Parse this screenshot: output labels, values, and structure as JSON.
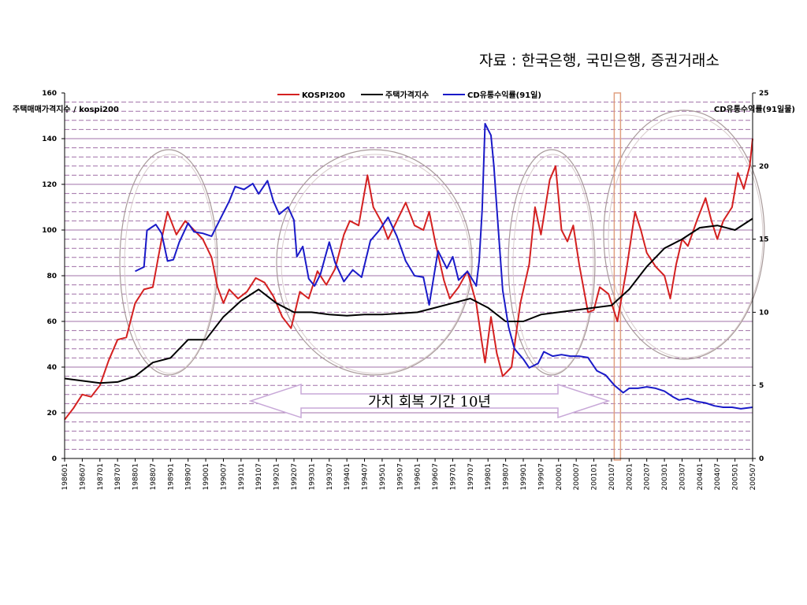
{
  "source_note": "자료 : 한국은행, 국민은행, 증권거래소",
  "chart_data": {
    "type": "line",
    "y_left_label": "주택매매가격지수 / kospi200",
    "y_right_label": "CD유통수익률(91일물)",
    "y_left_range": [
      0,
      160
    ],
    "y_left_ticks": [
      0,
      20,
      40,
      60,
      80,
      100,
      120,
      140,
      160
    ],
    "y_right_range": [
      0,
      25
    ],
    "y_right_ticks": [
      0,
      5,
      10,
      15,
      20,
      25
    ],
    "x_ticks": [
      "198601",
      "198607",
      "198701",
      "198707",
      "198801",
      "198807",
      "198901",
      "198907",
      "199001",
      "199007",
      "199101",
      "199107",
      "199201",
      "199207",
      "199301",
      "199307",
      "199401",
      "199407",
      "199501",
      "199507",
      "199601",
      "199607",
      "199701",
      "199707",
      "199801",
      "199807",
      "199901",
      "199907",
      "200001",
      "200007",
      "200101",
      "200107",
      "200201",
      "200207",
      "200301",
      "200307",
      "200401",
      "200407",
      "200501",
      "200507"
    ],
    "grid": "horizontal dashed",
    "legend_position": "top",
    "colors": {
      "kospi": "#d42020",
      "housing": "#000000",
      "cd": "#1a1ac8",
      "grid": "#a070a8",
      "ellipse": "#a89a9a",
      "arrow": "#c8a8d8",
      "highlight": "#e0a080"
    },
    "series": [
      {
        "name": "KOSPI200",
        "axis": "left",
        "points": [
          [
            "198601",
            17
          ],
          [
            "198604",
            22
          ],
          [
            "198607",
            28
          ],
          [
            "198610",
            27
          ],
          [
            "198701",
            32
          ],
          [
            "198704",
            43
          ],
          [
            "198707",
            52
          ],
          [
            "198710",
            53
          ],
          [
            "198801",
            68
          ],
          [
            "198804",
            74
          ],
          [
            "198807",
            75
          ],
          [
            "198810",
            96
          ],
          [
            "198812",
            108
          ],
          [
            "198903",
            98
          ],
          [
            "198906",
            104
          ],
          [
            "198909",
            100
          ],
          [
            "198912",
            96
          ],
          [
            "199003",
            88
          ],
          [
            "199005",
            75
          ],
          [
            "199007",
            68
          ],
          [
            "199009",
            74
          ],
          [
            "199012",
            70
          ],
          [
            "199103",
            73
          ],
          [
            "199106",
            79
          ],
          [
            "199109",
            77
          ],
          [
            "199112",
            71
          ],
          [
            "199203",
            62
          ],
          [
            "199206",
            57
          ],
          [
            "199209",
            73
          ],
          [
            "199212",
            70
          ],
          [
            "199303",
            82
          ],
          [
            "199306",
            76
          ],
          [
            "199309",
            83
          ],
          [
            "199312",
            98
          ],
          [
            "199402",
            104
          ],
          [
            "199405",
            102
          ],
          [
            "199408",
            124
          ],
          [
            "199410",
            110
          ],
          [
            "199501",
            103
          ],
          [
            "199503",
            96
          ],
          [
            "199506",
            104
          ],
          [
            "199509",
            112
          ],
          [
            "199512",
            102
          ],
          [
            "199603",
            100
          ],
          [
            "199605",
            108
          ],
          [
            "199607",
            95
          ],
          [
            "199610",
            78
          ],
          [
            "199612",
            70
          ],
          [
            "199703",
            75
          ],
          [
            "199706",
            82
          ],
          [
            "199709",
            68
          ],
          [
            "199711",
            50
          ],
          [
            "199712",
            42
          ],
          [
            "199802",
            62
          ],
          [
            "199804",
            46
          ],
          [
            "199806",
            36
          ],
          [
            "199809",
            40
          ],
          [
            "199812",
            68
          ],
          [
            "199903",
            85
          ],
          [
            "199905",
            110
          ],
          [
            "199907",
            98
          ],
          [
            "199910",
            122
          ],
          [
            "199912",
            128
          ],
          [
            "200002",
            100
          ],
          [
            "200004",
            95
          ],
          [
            "200006",
            102
          ],
          [
            "200008",
            85
          ],
          [
            "200011",
            64
          ],
          [
            "200101",
            65
          ],
          [
            "200103",
            75
          ],
          [
            "200106",
            72
          ],
          [
            "200109",
            60
          ],
          [
            "200112",
            82
          ],
          [
            "200203",
            108
          ],
          [
            "200205",
            100
          ],
          [
            "200207",
            90
          ],
          [
            "200210",
            84
          ],
          [
            "200301",
            80
          ],
          [
            "200303",
            70
          ],
          [
            "200305",
            85
          ],
          [
            "200307",
            96
          ],
          [
            "200309",
            93
          ],
          [
            "200312",
            104
          ],
          [
            "200403",
            114
          ],
          [
            "200405",
            104
          ],
          [
            "200407",
            96
          ],
          [
            "200409",
            104
          ],
          [
            "200412",
            110
          ],
          [
            "200502",
            125
          ],
          [
            "200504",
            118
          ],
          [
            "200506",
            128
          ],
          [
            "200507",
            140
          ]
        ]
      },
      {
        "name": "주택가격지수",
        "axis": "left",
        "points": [
          [
            "198601",
            35
          ],
          [
            "198607",
            34
          ],
          [
            "198701",
            33
          ],
          [
            "198707",
            33.5
          ],
          [
            "198801",
            36
          ],
          [
            "198807",
            42
          ],
          [
            "198901",
            44
          ],
          [
            "198907",
            52
          ],
          [
            "199001",
            52
          ],
          [
            "199007",
            62
          ],
          [
            "199101",
            69
          ],
          [
            "199107",
            74
          ],
          [
            "199201",
            68
          ],
          [
            "199207",
            64
          ],
          [
            "199301",
            64
          ],
          [
            "199307",
            63
          ],
          [
            "199401",
            62.5
          ],
          [
            "199407",
            63
          ],
          [
            "199501",
            63
          ],
          [
            "199507",
            63.5
          ],
          [
            "199601",
            64
          ],
          [
            "199607",
            66
          ],
          [
            "199701",
            68
          ],
          [
            "199707",
            70
          ],
          [
            "199801",
            66
          ],
          [
            "199807",
            60
          ],
          [
            "199901",
            60
          ],
          [
            "199907",
            63
          ],
          [
            "200001",
            64
          ],
          [
            "200007",
            65
          ],
          [
            "200101",
            66
          ],
          [
            "200107",
            67
          ],
          [
            "200201",
            74
          ],
          [
            "200207",
            84
          ],
          [
            "200301",
            92
          ],
          [
            "200307",
            96
          ],
          [
            "200401",
            101
          ],
          [
            "200407",
            102
          ],
          [
            "200501",
            100
          ],
          [
            "200507",
            105
          ]
        ]
      },
      {
        "name": "CD유통수익률(91일)",
        "axis": "right",
        "points": [
          [
            "198801",
            12.8
          ],
          [
            "198804",
            13.1
          ],
          [
            "198805",
            15.6
          ],
          [
            "198808",
            16
          ],
          [
            "198810",
            15.4
          ],
          [
            "198812",
            13.5
          ],
          [
            "198902",
            13.6
          ],
          [
            "198904",
            14.8
          ],
          [
            "198907",
            16.1
          ],
          [
            "198909",
            15.5
          ],
          [
            "198912",
            15.4
          ],
          [
            "199003",
            15.2
          ],
          [
            "199006",
            16.4
          ],
          [
            "199009",
            17.6
          ],
          [
            "199011",
            18.6
          ],
          [
            "199102",
            18.4
          ],
          [
            "199105",
            18.8
          ],
          [
            "199107",
            18.1
          ],
          [
            "199110",
            19
          ],
          [
            "199112",
            17.6
          ],
          [
            "199202",
            16.7
          ],
          [
            "199205",
            17.2
          ],
          [
            "199207",
            16.3
          ],
          [
            "199208",
            13.8
          ],
          [
            "199210",
            14.5
          ],
          [
            "199212",
            12.3
          ],
          [
            "199302",
            11.8
          ],
          [
            "199304",
            12.6
          ],
          [
            "199307",
            14.8
          ],
          [
            "199309",
            13.4
          ],
          [
            "199312",
            12.1
          ],
          [
            "199403",
            12.9
          ],
          [
            "199406",
            12.4
          ],
          [
            "199409",
            14.9
          ],
          [
            "199412",
            15.6
          ],
          [
            "199503",
            16.5
          ],
          [
            "199506",
            15.2
          ],
          [
            "199509",
            13.5
          ],
          [
            "199512",
            12.5
          ],
          [
            "199603",
            12.4
          ],
          [
            "199605",
            10.5
          ],
          [
            "199608",
            14.2
          ],
          [
            "199611",
            13.0
          ],
          [
            "199701",
            13.8
          ],
          [
            "199703",
            12.2
          ],
          [
            "199706",
            12.8
          ],
          [
            "199709",
            11.8
          ],
          [
            "199710",
            13.5
          ],
          [
            "199711",
            17.0
          ],
          [
            "199712",
            22.9
          ],
          [
            "199802",
            22.1
          ],
          [
            "199803",
            20.0
          ],
          [
            "199804",
            17.1
          ],
          [
            "199806",
            11.5
          ],
          [
            "199808",
            9.0
          ],
          [
            "199810",
            7.5
          ],
          [
            "199901",
            6.8
          ],
          [
            "199903",
            6.2
          ],
          [
            "199906",
            6.5
          ],
          [
            "199908",
            7.3
          ],
          [
            "199911",
            7.0
          ],
          [
            "200002",
            7.1
          ],
          [
            "200005",
            7.0
          ],
          [
            "200008",
            7.0
          ],
          [
            "200011",
            6.9
          ],
          [
            "200102",
            6.0
          ],
          [
            "200105",
            5.7
          ],
          [
            "200108",
            5.0
          ],
          [
            "200111",
            4.5
          ],
          [
            "200201",
            4.8
          ],
          [
            "200204",
            4.8
          ],
          [
            "200207",
            4.9
          ],
          [
            "200210",
            4.8
          ],
          [
            "200301",
            4.6
          ],
          [
            "200304",
            4.2
          ],
          [
            "200306",
            4.0
          ],
          [
            "200309",
            4.1
          ],
          [
            "200312",
            3.9
          ],
          [
            "200403",
            3.8
          ],
          [
            "200406",
            3.6
          ],
          [
            "200409",
            3.5
          ],
          [
            "200412",
            3.5
          ],
          [
            "200503",
            3.4
          ],
          [
            "200507",
            3.5
          ]
        ]
      }
    ],
    "annotations": {
      "arrow_text": "가치 회복 기간 10년",
      "ellipses": 4,
      "highlight_period": "200109"
    }
  }
}
